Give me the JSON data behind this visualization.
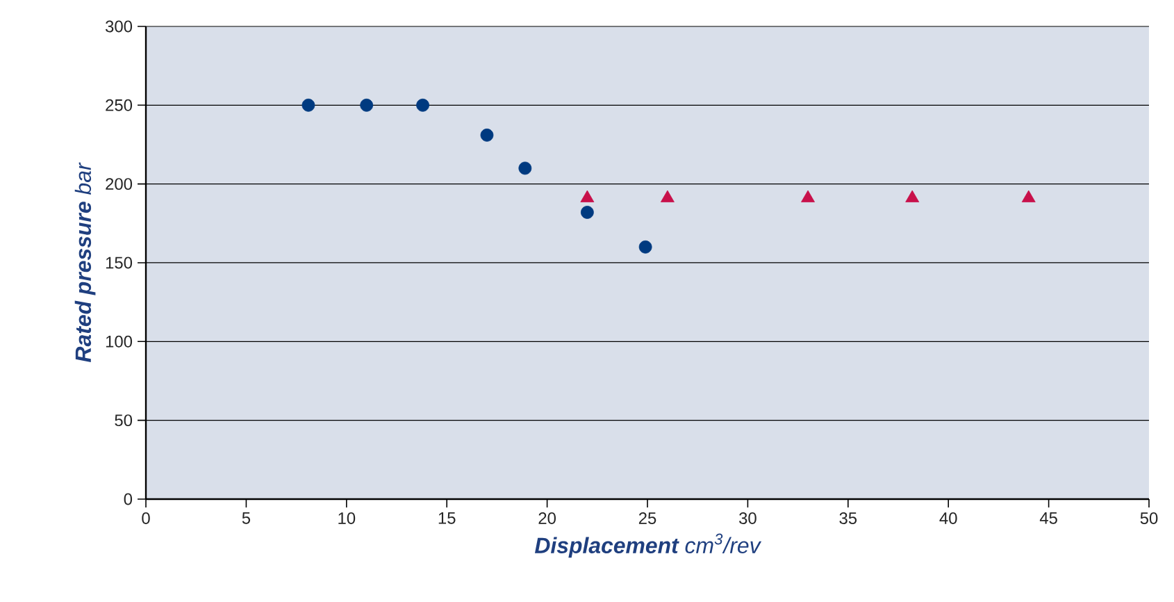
{
  "chart_data": {
    "type": "scatter",
    "xlabel": "**Displacement** cm$^{3}$/rev",
    "ylabel": "**Rated pressure**  bar",
    "xlim": [
      0,
      50
    ],
    "xticks": [
      0,
      5,
      10,
      15,
      20,
      25,
      30,
      35,
      40,
      45,
      50
    ],
    "ylim": [
      0,
      300
    ],
    "yticks": [
      0,
      50,
      100,
      150,
      200,
      250,
      300
    ],
    "grid": "y",
    "series": [
      {
        "color": "#003a80",
        "marker": "circle",
        "x": [
          8.1,
          11,
          13.8,
          17,
          18.9,
          22,
          24.9
        ],
        "values": [
          250,
          250,
          250,
          231,
          210,
          182,
          160
        ]
      },
      {
        "color": "#c8104a",
        "marker": "triangle",
        "x": [
          22,
          26,
          33,
          38.2,
          44
        ],
        "values": [
          191,
          191,
          191,
          191,
          191
        ]
      }
    ]
  }
}
